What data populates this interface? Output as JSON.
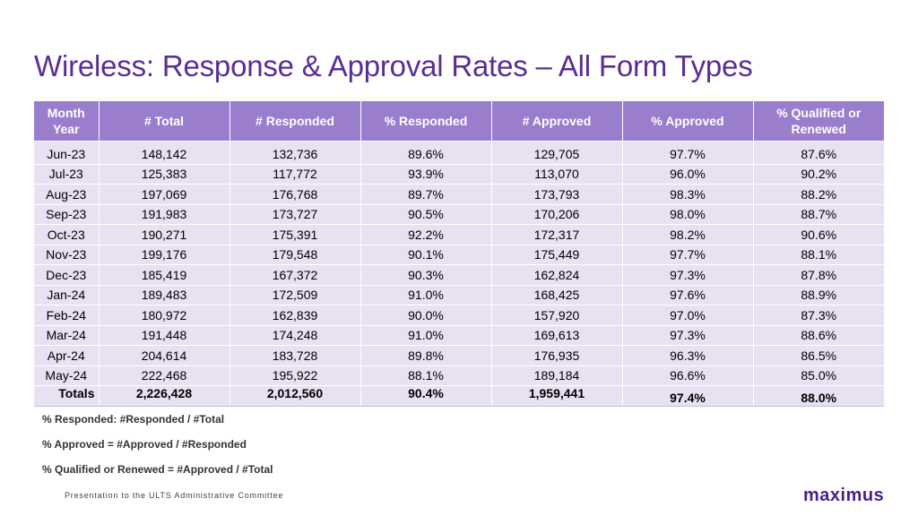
{
  "title": "Wireless: Response & Approval Rates – All Form Types",
  "table": {
    "headers": [
      "Month Year",
      "# Total",
      "# Responded",
      "% Responded",
      "# Approved",
      "% Approved",
      "% Qualified or Renewed"
    ],
    "rows": [
      [
        "Jun-23",
        "148,142",
        "132,736",
        "89.6%",
        "129,705",
        "97.7%",
        "87.6%"
      ],
      [
        "Jul-23",
        "125,383",
        "117,772",
        "93.9%",
        "113,070",
        "96.0%",
        "90.2%"
      ],
      [
        "Aug-23",
        "197,069",
        "176,768",
        "89.7%",
        "173,793",
        "98.3%",
        "88.2%"
      ],
      [
        "Sep-23",
        "191,983",
        "173,727",
        "90.5%",
        "170,206",
        "98.0%",
        "88.7%"
      ],
      [
        "Oct-23",
        "190,271",
        "175,391",
        "92.2%",
        "172,317",
        "98.2%",
        "90.6%"
      ],
      [
        "Nov-23",
        "199,176",
        "179,548",
        "90.1%",
        "175,449",
        "97.7%",
        "88.1%"
      ],
      [
        "Dec-23",
        "185,419",
        "167,372",
        "90.3%",
        "162,824",
        "97.3%",
        "87.8%"
      ],
      [
        "Jan-24",
        "189,483",
        "172,509",
        "91.0%",
        "168,425",
        "97.6%",
        "88.9%"
      ],
      [
        "Feb-24",
        "180,972",
        "162,839",
        "90.0%",
        "157,920",
        "97.0%",
        "87.3%"
      ],
      [
        "Mar-24",
        "191,448",
        "174,248",
        "91.0%",
        "169,613",
        "97.3%",
        "88.6%"
      ],
      [
        "Apr-24",
        "204,614",
        "183,728",
        "89.8%",
        "176,935",
        "96.3%",
        "86.5%"
      ],
      [
        "May-24",
        "222,468",
        "195,922",
        "88.1%",
        "189,184",
        "96.6%",
        "85.0%"
      ]
    ],
    "totals": [
      "Totals",
      "2,226,428",
      "2,012,560",
      "90.4%",
      "1,959,441",
      "97.4%",
      "88.0%"
    ]
  },
  "notes": [
    "% Responded: #Responded / #Total",
    "% Approved = #Approved / #Responded",
    "% Qualified or Renewed = #Approved / #Total"
  ],
  "footer": "Presentation to the ULTS Administrative Committee",
  "logo": "maximus",
  "colors": {
    "title": "#5b2d97",
    "header_bg": "#9b7dce",
    "row_bg": "#e7e1f2",
    "logo": "#4a1f8c"
  }
}
